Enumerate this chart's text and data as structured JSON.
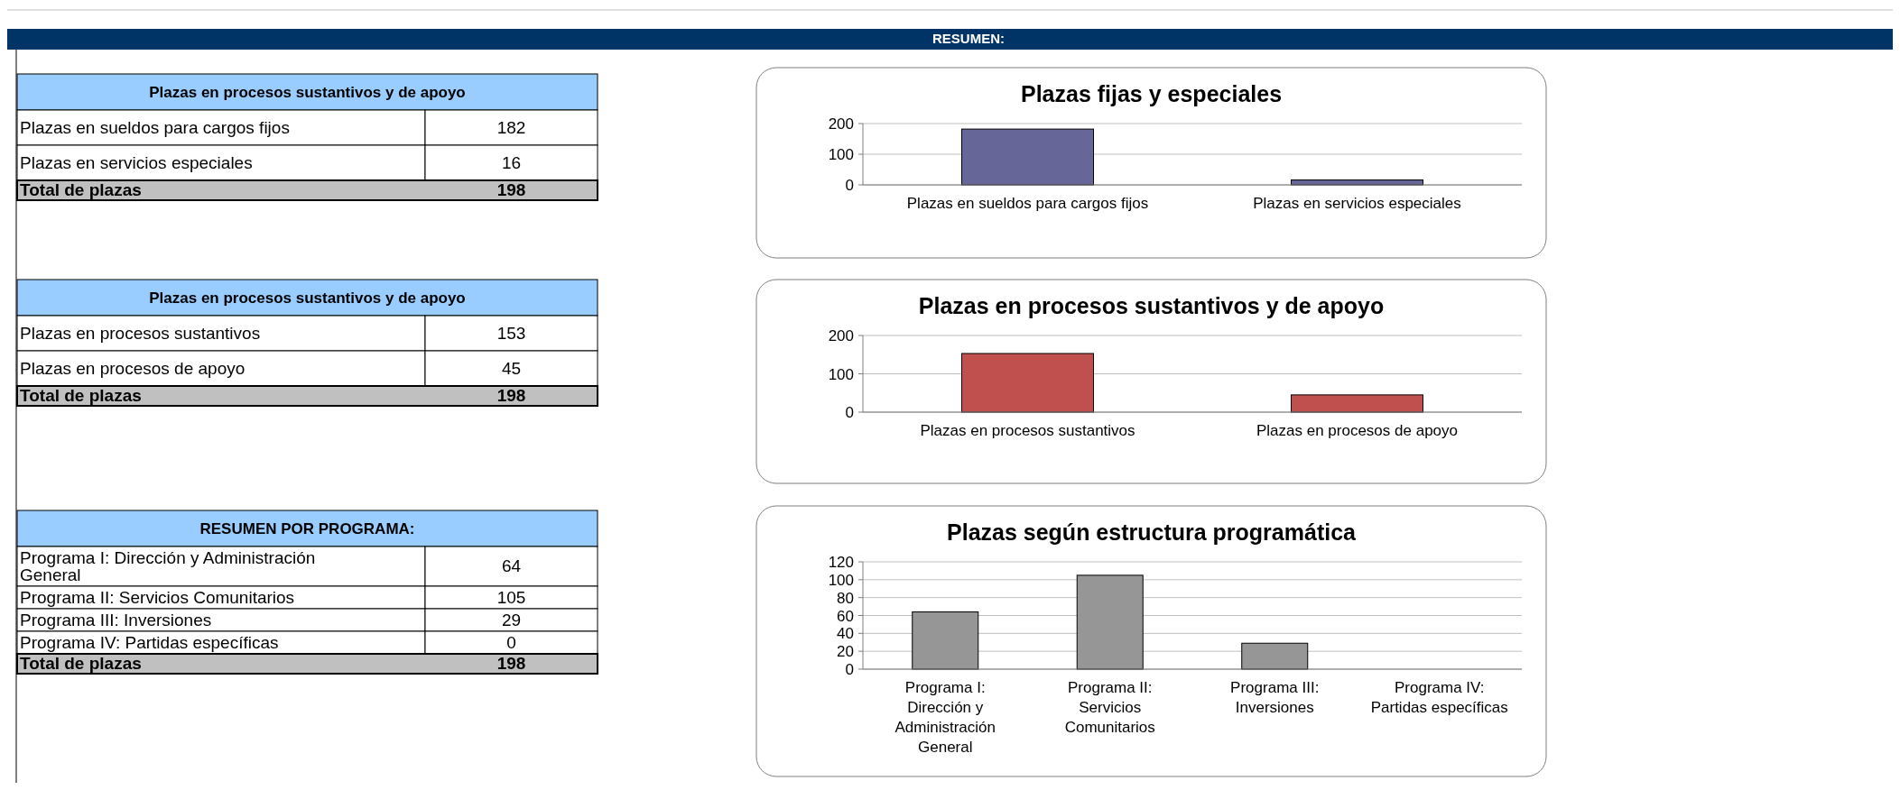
{
  "chart_data": [
    {
      "type": "other",
      "title": "RESUMEN:"
    },
    {
      "type": "other",
      "title": "Plazas en procesos sustantivos y de apoyo",
      "categories": [
        "Plazas en sueldos para cargos fijos",
        "Plazas en servicios especiales"
      ],
      "values": [
        182,
        16
      ],
      "data_labels": true,
      "annotations": [
        "Total de plazas",
        "198"
      ]
    },
    {
      "type": "bar",
      "title": "Plazas fijas y especiales",
      "categories": [
        "Plazas en sueldos para cargos fijos",
        "Plazas en servicios especiales"
      ],
      "values": [
        182,
        16
      ],
      "color": "#666699",
      "ylim": [
        0,
        200
      ],
      "yticks": [
        0,
        100,
        200
      ],
      "grid": "y"
    },
    {
      "type": "other",
      "title": "Plazas en procesos sustantivos y de apoyo",
      "categories": [
        "Plazas en procesos sustantivos",
        "Plazas en procesos de apoyo"
      ],
      "values": [
        153,
        45
      ],
      "data_labels": true,
      "annotations": [
        "Total de plazas",
        "198"
      ]
    },
    {
      "type": "bar",
      "title": "Plazas en procesos sustantivos y de apoyo",
      "categories": [
        "Plazas en procesos sustantivos",
        "Plazas en procesos de apoyo"
      ],
      "values": [
        153,
        45
      ],
      "color": "#c0504d",
      "ylim": [
        0,
        200
      ],
      "yticks": [
        0,
        100,
        200
      ],
      "grid": "y"
    },
    {
      "type": "other",
      "title": "RESUMEN POR PROGRAMA:",
      "categories": [
        "Programa I: Dirección y Administración General",
        "Programa II: Servicios Comunitarios",
        "Programa III: Inversiones",
        "Programa IV: Partidas específicas"
      ],
      "values": [
        64,
        105,
        29,
        0
      ],
      "data_labels": true,
      "annotations": [
        "Total de plazas",
        "198"
      ]
    },
    {
      "type": "bar",
      "title": "Plazas según estructura programática",
      "categories": [
        "Programa I: Dirección y Administración General",
        "Programa II: Servicios Comunitarios",
        "Programa III: Inversiones",
        "Programa IV: Partidas específicas"
      ],
      "values": [
        64,
        105,
        29,
        0
      ],
      "color": "#969696",
      "ylim": [
        0,
        120
      ],
      "yticks": [
        0,
        20,
        40,
        60,
        80,
        100,
        120
      ],
      "grid": "y"
    }
  ]
}
